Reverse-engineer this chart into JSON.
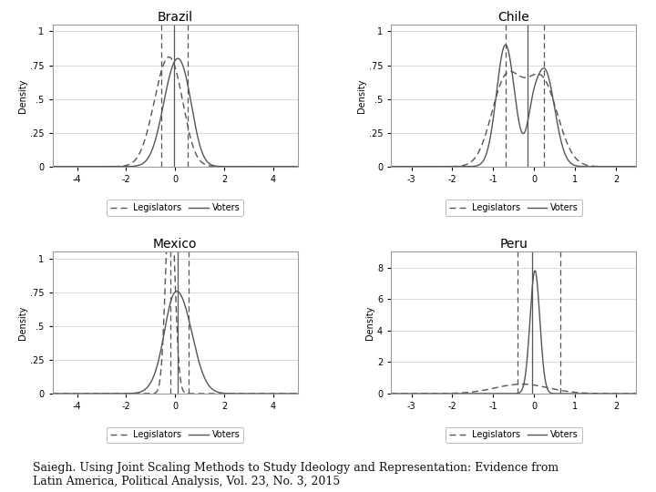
{
  "countries": [
    "Brazil",
    "Chile",
    "Mexico",
    "Peru"
  ],
  "brazil": {
    "xlim": [
      -5,
      5
    ],
    "xticks": [
      -4,
      -2,
      0,
      2,
      4
    ],
    "ylim": [
      0,
      1.05
    ],
    "yticks": [
      0,
      0.25,
      0.5,
      0.75,
      1
    ],
    "ytick_labels": [
      "0",
      ".25",
      ".5",
      ".75",
      "1"
    ],
    "vline_solid": -0.05,
    "vline_dashed": [
      -0.55,
      0.5
    ]
  },
  "chile": {
    "xlim": [
      -3.5,
      2.5
    ],
    "xticks": [
      -3,
      -2,
      -1,
      0,
      1,
      2
    ],
    "ylim": [
      0,
      1.05
    ],
    "yticks": [
      0,
      0.25,
      0.5,
      0.75,
      1
    ],
    "ytick_labels": [
      "0",
      ".25",
      ".5",
      ".75",
      "1"
    ],
    "vline_solid": -0.15,
    "vline_dashed": [
      -0.7,
      0.25
    ]
  },
  "mexico": {
    "xlim": [
      -5,
      5
    ],
    "xticks": [
      -4,
      -2,
      0,
      2,
      4
    ],
    "ylim": [
      0,
      1.05
    ],
    "yticks": [
      0,
      0.25,
      0.5,
      0.75,
      1
    ],
    "ytick_labels": [
      "0",
      ".25",
      ".5",
      ".75",
      "1"
    ],
    "vline_solid": 0.1,
    "vline_dashed": [
      -0.2,
      0.55
    ]
  },
  "peru": {
    "xlim": [
      -3.5,
      2.5
    ],
    "xticks": [
      -3,
      -2,
      -1,
      0,
      1,
      2
    ],
    "ylim": [
      0,
      9
    ],
    "yticks": [
      0,
      2,
      4,
      6,
      8
    ],
    "ytick_labels": [
      "0",
      "2",
      "4",
      "6",
      "8"
    ],
    "vline_solid": -0.05,
    "vline_dashed": [
      -0.4,
      0.65
    ]
  },
  "line_color": "#555555",
  "bg_color": "#ffffff",
  "legend_entries": [
    "Legislators",
    "Voters"
  ],
  "ylabel": "Density",
  "caption": "Saiegh. Using Joint Scaling Methods to Study Ideology and Representation: Evidence from\nLatin America, Political Analysis, Vol. 23, No. 3, 2015"
}
